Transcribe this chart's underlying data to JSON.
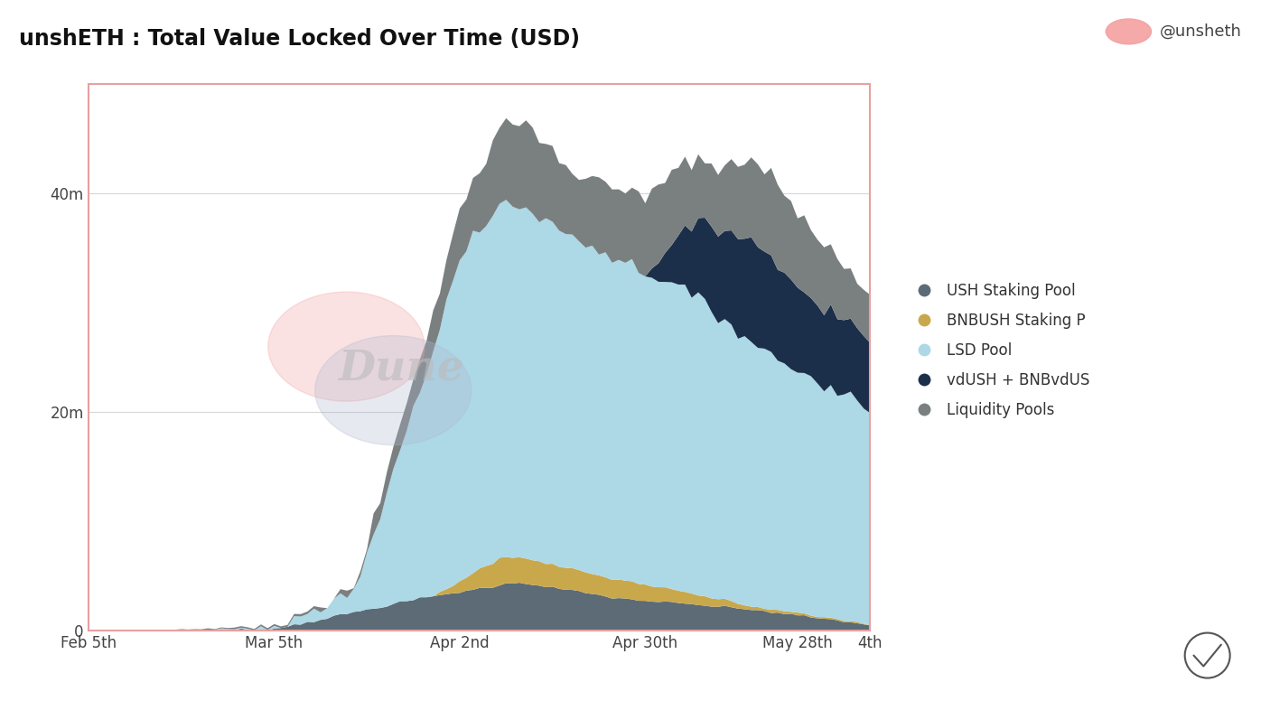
{
  "title": "unshETH : Total Value Locked Over Time (USD)",
  "title_fontsize": 17,
  "background_color": "#ffffff",
  "border_color": "#e8a0a0",
  "watermark": "Dune",
  "watermark_color": "#bbbbbb",
  "annotation": "@unsheth",
  "annotation_color": "#444444",
  "annotation_dot_color": "#f4a0a0",
  "ytick_labels": [
    "0",
    "20m",
    "40m"
  ],
  "ytick_values": [
    0,
    20000000,
    40000000
  ],
  "ylim": [
    0,
    50000000
  ],
  "series_names": [
    "USH Staking Pool",
    "BNBUSH Staking P",
    "LSD Pool",
    "vdUSH + BNBvdUS",
    "Liquidity Pools"
  ],
  "series_colors": [
    "#5c6b75",
    "#c9a84c",
    "#add8e6",
    "#1c2f4a",
    "#7a8080"
  ],
  "n_points": 119
}
